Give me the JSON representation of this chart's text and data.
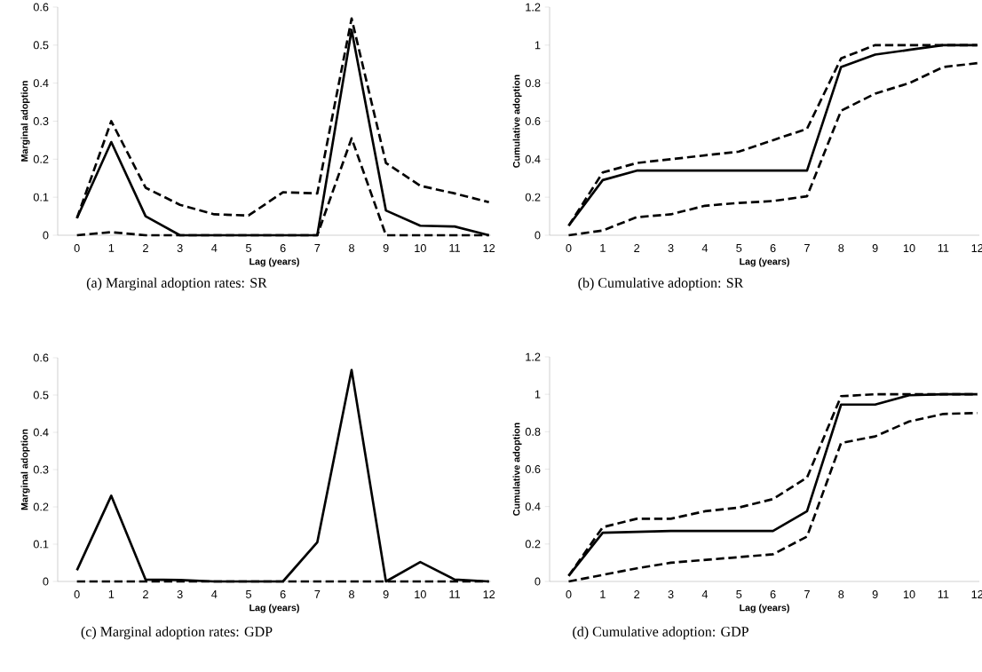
{
  "chart_data": [
    {
      "type": "line",
      "title": "(a) Marginal adoption rates: SR",
      "xlabel": "Lag (years)",
      "ylabel": "Marginal adoption",
      "categories": [
        "0",
        "1",
        "2",
        "3",
        "4",
        "5",
        "6",
        "7",
        "8",
        "9",
        "10",
        "11",
        "12"
      ],
      "ylim": [
        0,
        0.6
      ],
      "yticks": [
        0,
        0.1,
        0.2,
        0.3,
        0.4,
        0.5,
        0.6
      ],
      "grid": false,
      "legend": false,
      "marker": "none",
      "series": [
        {
          "color": "#000000",
          "line_style": "solid",
          "values": [
            0.045,
            0.245,
            0.05,
            0,
            0,
            0,
            0,
            0,
            0.54,
            0.065,
            0.025,
            0.023,
            0
          ]
        },
        {
          "color": "#000000",
          "line_style": "dashed",
          "values": [
            0.045,
            0.3,
            0.125,
            0.08,
            0.055,
            0.052,
            0.113,
            0.11,
            0.57,
            0.19,
            0.13,
            0.11,
            0.087
          ]
        },
        {
          "color": "#000000",
          "line_style": "dashed",
          "values": [
            0,
            0.008,
            0,
            0,
            0,
            0,
            0,
            0,
            0.255,
            0,
            0,
            0,
            0
          ]
        }
      ]
    },
    {
      "type": "line",
      "title": "(b) Cumulative adoption: SR",
      "xlabel": "Lag (years)",
      "ylabel": "Cumulative adoption",
      "categories": [
        "0",
        "1",
        "2",
        "3",
        "4",
        "5",
        "6",
        "7",
        "8",
        "9",
        "10",
        "11",
        "12"
      ],
      "ylim": [
        0,
        1.2
      ],
      "yticks": [
        0,
        0.2,
        0.4,
        0.6,
        0.8,
        1,
        1.2
      ],
      "grid": false,
      "legend": false,
      "marker": "none",
      "series": [
        {
          "color": "#000000",
          "line_style": "solid",
          "values": [
            0.05,
            0.29,
            0.34,
            0.34,
            0.34,
            0.34,
            0.34,
            0.34,
            0.885,
            0.95,
            0.975,
            1,
            1
          ]
        },
        {
          "color": "#000000",
          "line_style": "dashed",
          "values": [
            0.05,
            0.33,
            0.38,
            0.4,
            0.42,
            0.44,
            0.5,
            0.56,
            0.93,
            1,
            1,
            1,
            1
          ]
        },
        {
          "color": "#000000",
          "line_style": "dashed",
          "values": [
            0,
            0.025,
            0.095,
            0.11,
            0.155,
            0.17,
            0.18,
            0.205,
            0.655,
            0.745,
            0.8,
            0.885,
            0.905
          ]
        }
      ]
    },
    {
      "type": "line",
      "title": "(c) Marginal adoption rates: GDP",
      "xlabel": "Lag (years)",
      "ylabel": "Marginal adoption",
      "categories": [
        "0",
        "1",
        "2",
        "3",
        "4",
        "5",
        "6",
        "7",
        "8",
        "9",
        "10",
        "11",
        "12"
      ],
      "ylim": [
        0,
        0.6
      ],
      "yticks": [
        0,
        0.1,
        0.2,
        0.3,
        0.4,
        0.5,
        0.6
      ],
      "grid": false,
      "legend": false,
      "marker": "none",
      "series": [
        {
          "color": "#000000",
          "line_style": "solid",
          "values": [
            0.03,
            0.23,
            0.005,
            0.004,
            0,
            0,
            0,
            0.105,
            0.567,
            0,
            0.052,
            0.005,
            0
          ]
        },
        {
          "color": "#000000",
          "line_style": "dashed",
          "values": [
            0,
            0,
            0,
            0,
            0,
            0,
            0,
            0,
            0,
            0,
            0,
            0,
            0
          ]
        }
      ]
    },
    {
      "type": "line",
      "title": "(d) Cumulative adoption: GDP",
      "xlabel": "Lag (years)",
      "ylabel": "Cumulative adoption",
      "categories": [
        "0",
        "1",
        "2",
        "3",
        "4",
        "5",
        "6",
        "7",
        "8",
        "9",
        "10",
        "11",
        "12"
      ],
      "ylim": [
        0,
        1.2
      ],
      "yticks": [
        0,
        0.2,
        0.4,
        0.6,
        0.8,
        1,
        1.2
      ],
      "grid": false,
      "legend": false,
      "marker": "none",
      "series": [
        {
          "color": "#000000",
          "line_style": "solid",
          "values": [
            0.03,
            0.26,
            0.265,
            0.27,
            0.27,
            0.27,
            0.27,
            0.375,
            0.945,
            0.945,
            0.995,
            1,
            1
          ]
        },
        {
          "color": "#000000",
          "line_style": "dashed",
          "values": [
            0.03,
            0.29,
            0.335,
            0.335,
            0.375,
            0.395,
            0.44,
            0.555,
            0.99,
            1,
            1,
            1,
            1
          ]
        },
        {
          "color": "#000000",
          "line_style": "dashed",
          "values": [
            0,
            0.035,
            0.07,
            0.1,
            0.115,
            0.13,
            0.145,
            0.24,
            0.74,
            0.775,
            0.855,
            0.895,
            0.9
          ]
        }
      ]
    }
  ]
}
